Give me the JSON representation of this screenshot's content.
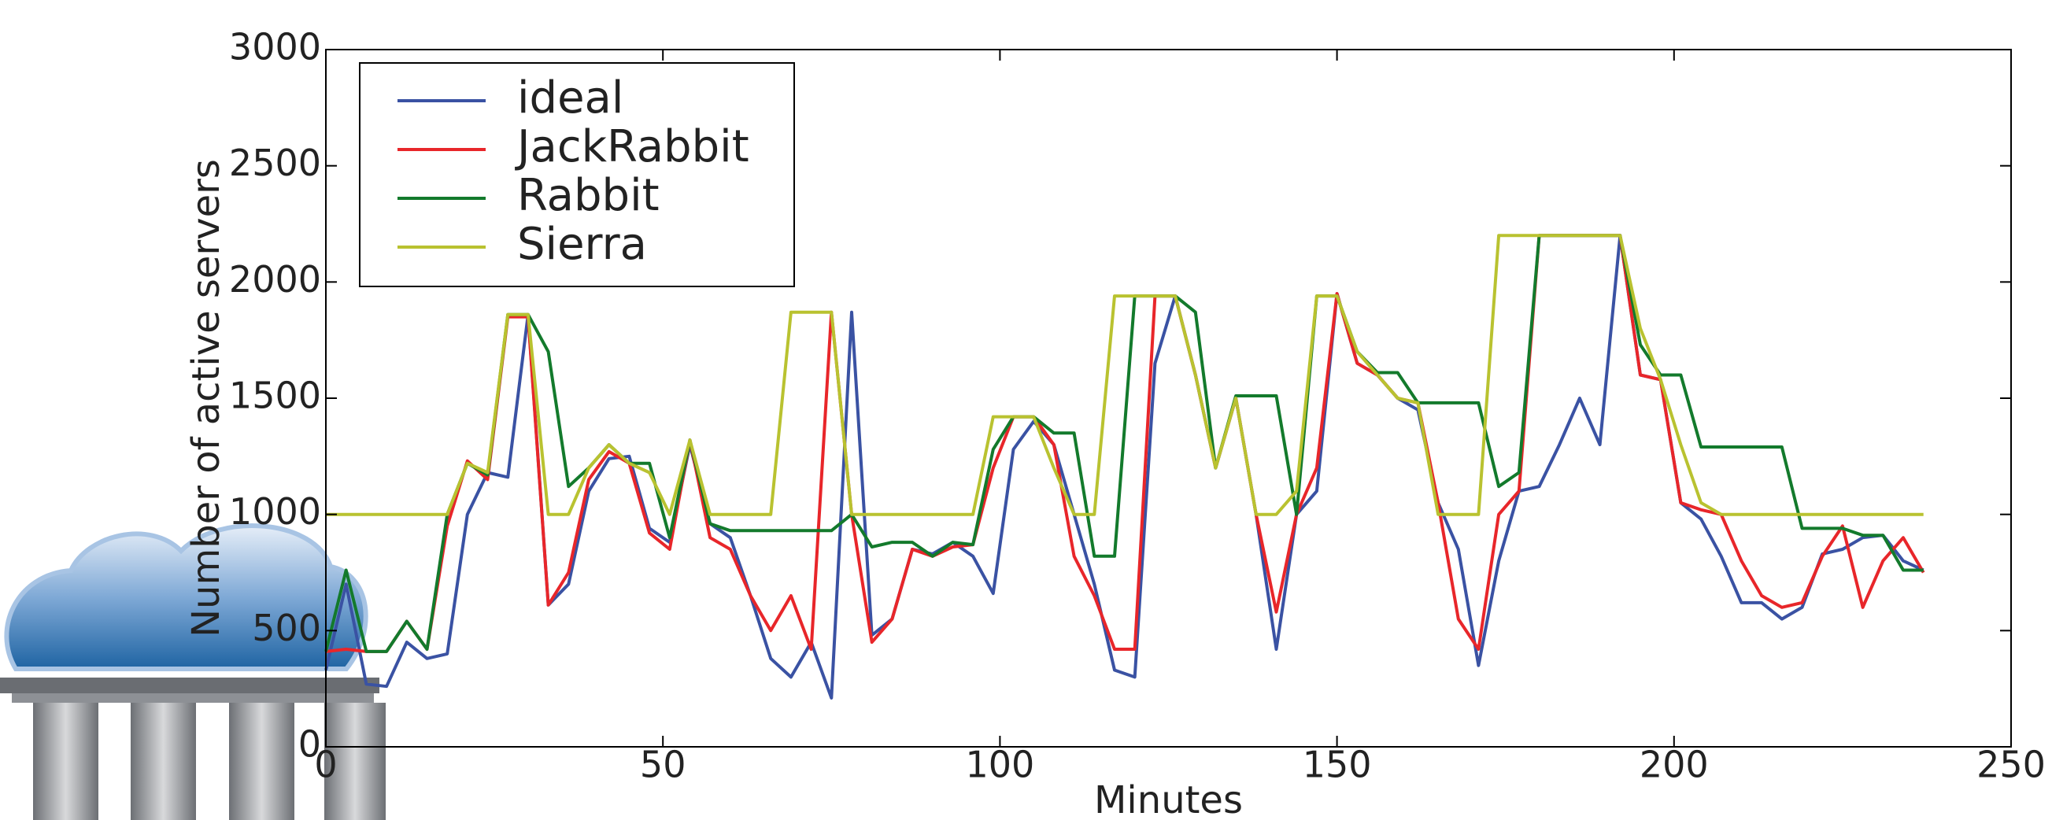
{
  "chart_data": {
    "type": "line",
    "x_label": "Minutes",
    "y_label": "Number of active servers",
    "xlim": [
      0,
      250
    ],
    "ylim": [
      0,
      3000
    ],
    "xticks": [
      0,
      50,
      100,
      150,
      200,
      250
    ],
    "yticks": [
      0,
      500,
      1000,
      1500,
      2000,
      2500,
      3000
    ],
    "legend": "upper left",
    "x": [
      0,
      3,
      6,
      9,
      12,
      15,
      18,
      21,
      24,
      27,
      30,
      33,
      36,
      39,
      42,
      45,
      48,
      51,
      54,
      57,
      60,
      63,
      66,
      69,
      72,
      75,
      78,
      81,
      84,
      87,
      90,
      93,
      96,
      99,
      102,
      105,
      108,
      111,
      114,
      117,
      120,
      123,
      126,
      129,
      132,
      135,
      138,
      141,
      144,
      147,
      150,
      153,
      156,
      159,
      162,
      165,
      168,
      171,
      174,
      177,
      180,
      183,
      186,
      189,
      192,
      195,
      198,
      201,
      204,
      207,
      210,
      213,
      216,
      219,
      222,
      225,
      228,
      231,
      234,
      237
    ],
    "series": [
      {
        "name": "ideal",
        "color": "#3a52a3",
        "values": [
          330,
          700,
          270,
          260,
          450,
          380,
          400,
          1000,
          1180,
          1160,
          1860,
          610,
          700,
          1100,
          1240,
          1250,
          940,
          880,
          1300,
          960,
          900,
          650,
          380,
          300,
          450,
          210,
          1870,
          480,
          550,
          850,
          830,
          880,
          820,
          660,
          1280,
          1400,
          1300,
          1000,
          700,
          330,
          300,
          1650,
          1940,
          1600,
          1200,
          1500,
          1000,
          420,
          1000,
          1100,
          1950,
          1650,
          1600,
          1500,
          1450,
          1050,
          850,
          350,
          800,
          1100,
          1120,
          1300,
          1500,
          1300,
          2200,
          1600,
          1580,
          1050,
          980,
          820,
          620,
          620,
          550,
          600,
          830,
          850,
          900,
          910,
          800,
          760
        ]
      },
      {
        "name": "JackRabbit",
        "color": "#e8262a",
        "values": [
          410,
          420,
          410,
          410,
          540,
          420,
          950,
          1230,
          1150,
          1850,
          1850,
          610,
          750,
          1150,
          1270,
          1220,
          920,
          850,
          1320,
          900,
          850,
          650,
          500,
          650,
          420,
          1870,
          1000,
          450,
          550,
          850,
          820,
          860,
          870,
          1200,
          1420,
          1420,
          1300,
          820,
          650,
          420,
          420,
          1940,
          1940,
          1600,
          1200,
          1500,
          1000,
          580,
          1000,
          1200,
          1950,
          1650,
          1600,
          1500,
          1480,
          1050,
          550,
          420,
          1000,
          1100,
          2200,
          2200,
          2200,
          2200,
          2200,
          1600,
          1580,
          1050,
          1020,
          1000,
          800,
          650,
          600,
          620,
          820,
          950,
          600,
          800,
          900,
          750
        ]
      },
      {
        "name": "Rabbit",
        "color": "#137a2c",
        "values": [
          410,
          760,
          410,
          410,
          540,
          420,
          1000,
          1220,
          1170,
          1860,
          1860,
          1700,
          1120,
          1200,
          1300,
          1220,
          1220,
          900,
          1320,
          960,
          930,
          930,
          930,
          930,
          930,
          930,
          1000,
          860,
          880,
          880,
          820,
          880,
          870,
          1280,
          1420,
          1420,
          1350,
          1350,
          820,
          820,
          1940,
          1940,
          1940,
          1870,
          1200,
          1510,
          1510,
          1510,
          1000,
          1940,
          1940,
          1700,
          1610,
          1610,
          1480,
          1480,
          1480,
          1480,
          1120,
          1180,
          2200,
          2200,
          2200,
          2200,
          2200,
          1730,
          1600,
          1600,
          1290,
          1290,
          1290,
          1290,
          1290,
          940,
          940,
          940,
          910,
          910,
          760,
          760
        ]
      },
      {
        "name": "Sierra",
        "color": "#b9c230",
        "values": [
          1000,
          1000,
          1000,
          1000,
          1000,
          1000,
          1000,
          1220,
          1180,
          1860,
          1860,
          1000,
          1000,
          1200,
          1300,
          1220,
          1180,
          1000,
          1320,
          1000,
          1000,
          1000,
          1000,
          1870,
          1870,
          1870,
          1000,
          1000,
          1000,
          1000,
          1000,
          1000,
          1000,
          1420,
          1420,
          1420,
          1200,
          1000,
          1000,
          1940,
          1940,
          1940,
          1940,
          1600,
          1200,
          1500,
          1000,
          1000,
          1100,
          1940,
          1940,
          1700,
          1600,
          1500,
          1480,
          1000,
          1000,
          1000,
          2200,
          2200,
          2200,
          2200,
          2200,
          2200,
          2200,
          1800,
          1580,
          1300,
          1050,
          1000,
          1000,
          1000,
          1000,
          1000,
          1000,
          1000,
          1000,
          1000,
          1000,
          1000
        ]
      }
    ]
  }
}
